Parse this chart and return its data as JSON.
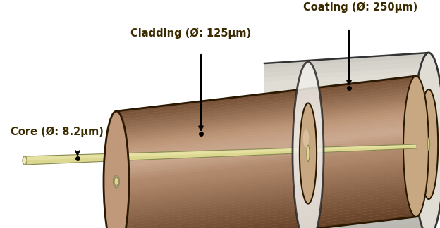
{
  "bg_color": "#ffffff",
  "labels": {
    "core": "Core (Ø: 8.2μm)",
    "cladding": "Cladding (Ø: 125μm)",
    "coating": "Coating (Ø: 250μm)"
  },
  "label_color": "#3a2a00",
  "arrow_color": "#111111",
  "coating_color": "#e0ddd5",
  "coating_edge_color": "#333333",
  "cladding_top_color": "#c8a882",
  "cladding_mid_color": "#b89060",
  "cladding_bot_color": "#806040",
  "core_color": "#ddd890",
  "core_highlight": "#eeeab0"
}
